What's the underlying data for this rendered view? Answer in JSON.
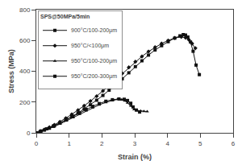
{
  "chart_data": {
    "type": "line",
    "title": "SPS@50MPa/5min",
    "xlabel": "Strain (%)",
    "ylabel": "Stress (MPa)",
    "xlim": [
      0,
      6
    ],
    "ylim": [
      0,
      800
    ],
    "xticks": [
      0,
      1,
      2,
      3,
      4,
      5,
      6
    ],
    "yticks": [
      0,
      200,
      400,
      600,
      800
    ],
    "grid": false,
    "legend": "upper left",
    "series": [
      {
        "name": "900°C/100-200μm",
        "color": "#111111",
        "marker": "square",
        "x": [
          0,
          0.12,
          0.25,
          0.4,
          0.55,
          0.72,
          0.9,
          1.08,
          1.27,
          1.46,
          1.65,
          1.84,
          2.03,
          2.22,
          2.42,
          2.62,
          2.82,
          3.02,
          3.22,
          3.42,
          3.62,
          3.82,
          4.02,
          4.22,
          4.38,
          4.48,
          4.55,
          4.62,
          4.7,
          4.78,
          4.87,
          4.97
        ],
        "values": [
          0,
          8,
          18,
          30,
          45,
          63,
          83,
          105,
          128,
          155,
          182,
          212,
          243,
          277,
          313,
          351,
          390,
          430,
          468,
          505,
          538,
          566,
          592,
          615,
          630,
          638,
          635,
          622,
          590,
          530,
          440,
          378
        ]
      },
      {
        "name": "950°C/<100μm",
        "color": "#111111",
        "marker": "diamond",
        "x": [
          0,
          0.12,
          0.25,
          0.4,
          0.55,
          0.72,
          0.9,
          1.08,
          1.27,
          1.46,
          1.65,
          1.84,
          2.03,
          2.22,
          2.42,
          2.62,
          2.82,
          3.02,
          3.22,
          3.42,
          3.62,
          3.82,
          4.02,
          4.22,
          4.42,
          4.55,
          4.65,
          4.75,
          4.85
        ],
        "values": [
          0,
          10,
          22,
          36,
          52,
          72,
          95,
          120,
          147,
          176,
          206,
          238,
          272,
          308,
          346,
          386,
          425,
          462,
          496,
          528,
          556,
          580,
          600,
          616,
          623,
          618,
          605,
          580,
          550
        ]
      },
      {
        "name": "950°C/100-200μm",
        "color": "#111111",
        "marker": "triangle-up",
        "x": [
          0,
          0.15,
          0.32,
          0.52,
          0.72,
          0.92,
          1.12,
          1.32,
          1.52,
          1.72,
          1.92,
          2.12,
          2.32,
          2.48,
          2.6,
          2.7,
          2.78,
          2.88,
          2.98,
          3.08,
          3.18,
          3.28,
          3.38
        ],
        "values": [
          0,
          10,
          22,
          38,
          57,
          78,
          100,
          122,
          144,
          164,
          182,
          198,
          210,
          218,
          215,
          208,
          195,
          175,
          152,
          145,
          142,
          140,
          138
        ]
      },
      {
        "name": "950°C/200-300μm",
        "color": "#111111",
        "marker": "square",
        "x": [
          0,
          0.15,
          0.32,
          0.52,
          0.72,
          0.92,
          1.12,
          1.32,
          1.52,
          1.72,
          1.92,
          2.12,
          2.32,
          2.52,
          2.68,
          2.78,
          2.88,
          2.95,
          3.05,
          3.15
        ],
        "values": [
          0,
          12,
          26,
          44,
          64,
          86,
          108,
          130,
          152,
          172,
          190,
          205,
          215,
          220,
          218,
          210,
          192,
          168,
          148,
          135
        ]
      }
    ]
  }
}
